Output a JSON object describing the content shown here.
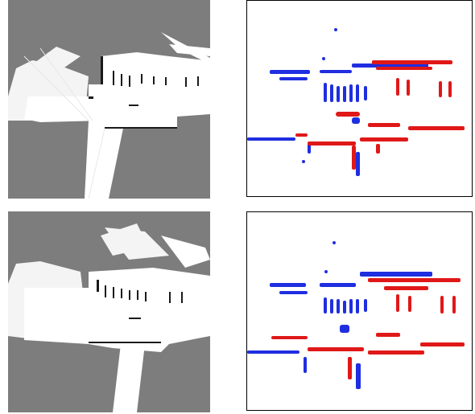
{
  "figure": {
    "rows": [
      {
        "map": {
          "icon": "occupancy-grid-map-image"
        },
        "cloud": {
          "icon": "point-cloud-overlay-image"
        }
      },
      {
        "map": {
          "icon": "occupancy-grid-map-image"
        },
        "cloud": {
          "icon": "point-cloud-overlay-image"
        }
      }
    ],
    "colors": {
      "unknown": "#7d7d7d",
      "free": "#ffffff",
      "occupied": "#1a1a1a",
      "scan_reference": "#1f2ee0",
      "scan_aligned": "#e01818",
      "frame": "#000000"
    }
  }
}
